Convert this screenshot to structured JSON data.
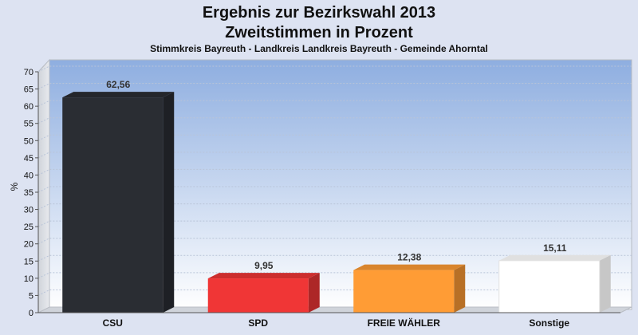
{
  "chart_data": {
    "type": "bar",
    "title": "Ergebnis zur Bezirkswahl 2013",
    "title2": "Zweitstimmen in Prozent",
    "subtitle": "Stimmkreis Bayreuth - Landkreis Landkreis Bayreuth - Gemeinde Ahorntal",
    "xlabel": "",
    "ylabel": "%",
    "ylim": [
      0,
      70
    ],
    "yticks": [
      "0",
      "5",
      "10",
      "15",
      "20",
      "25",
      "30",
      "35",
      "40",
      "45",
      "50",
      "55",
      "60",
      "65",
      "70"
    ],
    "categories": [
      "CSU",
      "SPD",
      "FREIE WÄHLER",
      "Sonstige"
    ],
    "values": [
      62.56,
      9.95,
      12.38,
      15.11
    ],
    "value_labels": [
      "62,56",
      "9,95",
      "12,38",
      "15,11"
    ],
    "colors": [
      "#2a2d33",
      "#f03636",
      "#ff9c35",
      "#ffffff"
    ],
    "grid": true,
    "legend": "none"
  }
}
